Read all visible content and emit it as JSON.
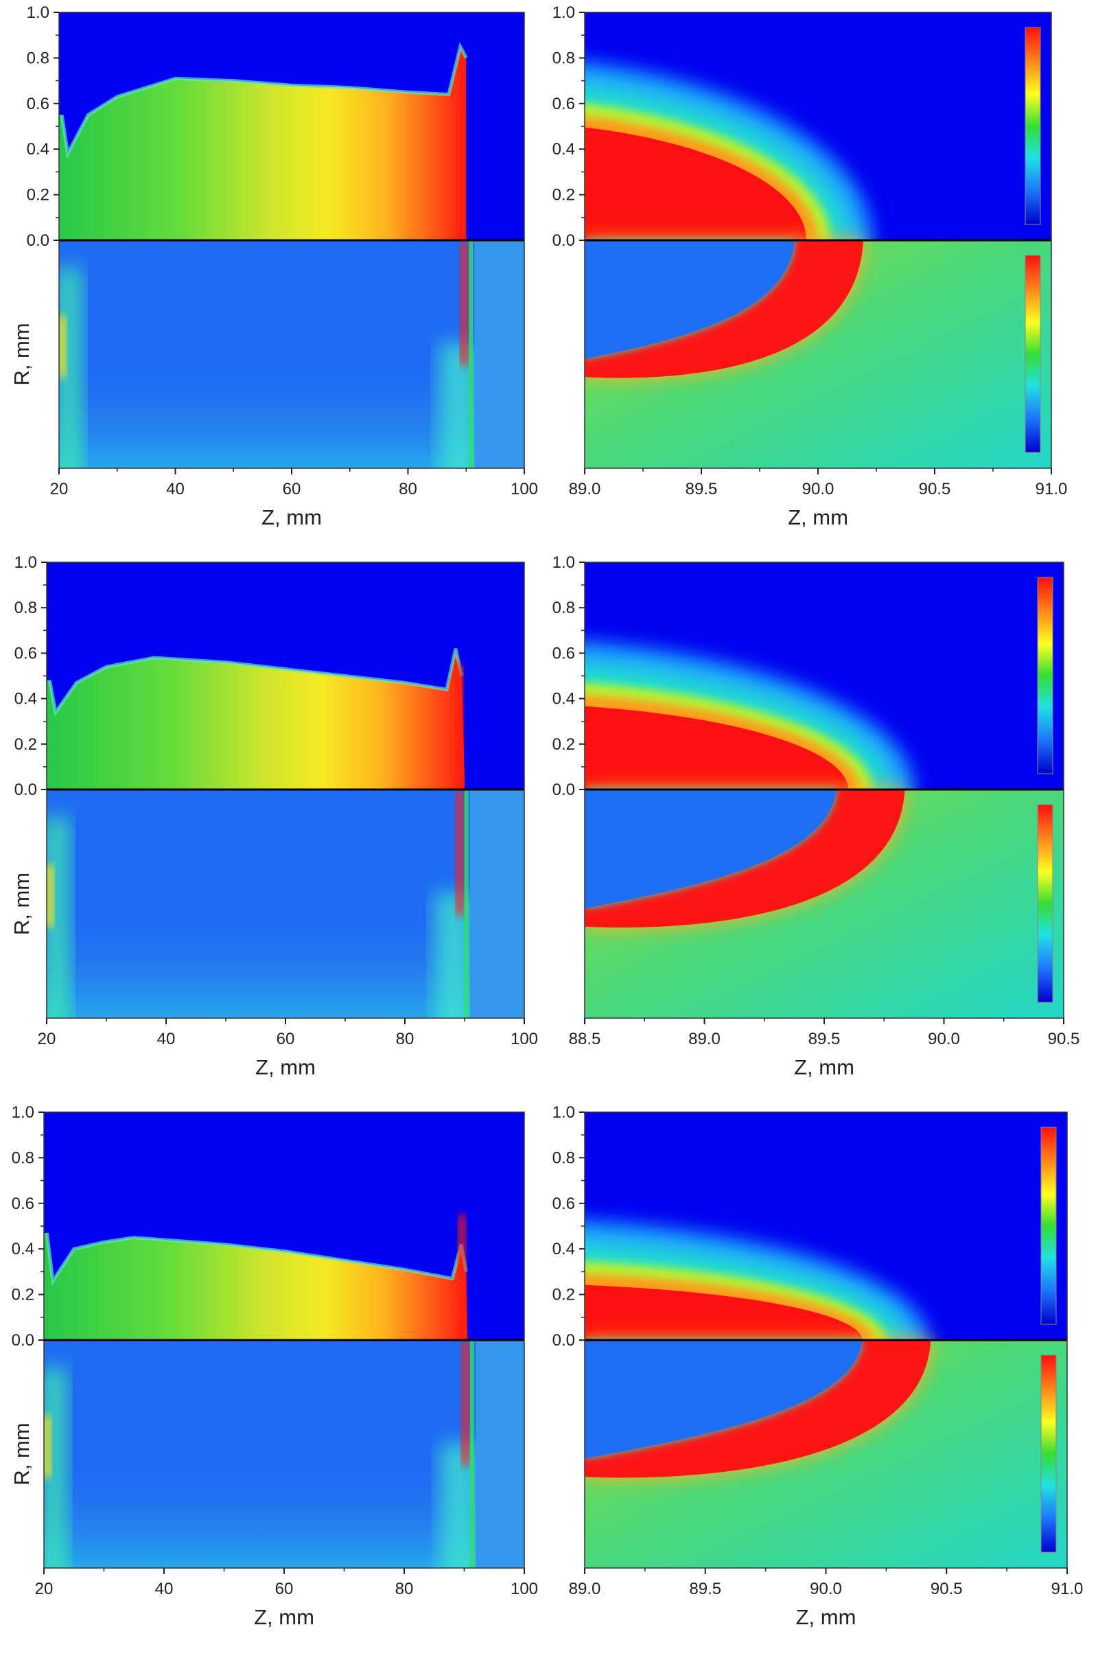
{
  "chart_data": [
    {
      "type": "heatmap",
      "panel": "row-1-left",
      "x_ticks": [
        "20",
        "40",
        "60",
        "80",
        "100"
      ],
      "y_ticks": [
        "0.0",
        "0.2",
        "0.4",
        "0.6",
        "0.8",
        "1.0"
      ],
      "xlabel": "Z, mm",
      "ylabel": "R, mm",
      "xlim": [
        20,
        100
      ],
      "ylim_top": [
        0,
        1
      ],
      "colorbar": false,
      "upper_field": {
        "boundary_z": 90,
        "hot_near_z": 89,
        "contour_r": [
          [
            20.5,
            0.55
          ],
          [
            21.5,
            0.38
          ],
          [
            25,
            0.55
          ],
          [
            30,
            0.63
          ],
          [
            40,
            0.71
          ],
          [
            50,
            0.7
          ],
          [
            60,
            0.68
          ],
          [
            70,
            0.67
          ],
          [
            80,
            0.65
          ],
          [
            87,
            0.64
          ],
          [
            89,
            0.85
          ],
          [
            90,
            0.8
          ]
        ]
      },
      "lower_field": {
        "front_z": 90
      }
    },
    {
      "type": "heatmap",
      "panel": "row-1-right",
      "x_ticks": [
        "89.0",
        "89.5",
        "90.0",
        "90.5",
        "91.0"
      ],
      "y_ticks": [
        "0.0",
        "0.2",
        "0.4",
        "0.6",
        "0.8",
        "1.0"
      ],
      "xlabel": "Z, mm",
      "xlim": [
        89.0,
        91.0
      ],
      "ylim_top": [
        0,
        1
      ],
      "colorbar": true,
      "upper_field": {
        "core_radius": 0.52,
        "tip_z": 89.95
      },
      "lower_field": {
        "front_tip_z": 89.9
      }
    },
    {
      "type": "heatmap",
      "panel": "row-2-left",
      "x_ticks": [
        "20",
        "40",
        "60",
        "80",
        "100"
      ],
      "y_ticks": [
        "0.0",
        "0.2",
        "0.4",
        "0.6",
        "0.8",
        "1.0"
      ],
      "xlabel": "Z, mm",
      "ylabel": "R, mm",
      "xlim": [
        20,
        100
      ],
      "ylim_top": [
        0,
        1
      ],
      "colorbar": false,
      "upper_field": {
        "boundary_z": 90,
        "hot_near_z": 89,
        "contour_r": [
          [
            20.5,
            0.48
          ],
          [
            21.5,
            0.34
          ],
          [
            25,
            0.47
          ],
          [
            30,
            0.54
          ],
          [
            38,
            0.58
          ],
          [
            50,
            0.56
          ],
          [
            60,
            0.53
          ],
          [
            70,
            0.5
          ],
          [
            80,
            0.47
          ],
          [
            87,
            0.44
          ],
          [
            88.5,
            0.62
          ],
          [
            89.5,
            0.5
          ]
        ]
      },
      "lower_field": {
        "front_z": 89.5
      }
    },
    {
      "type": "heatmap",
      "panel": "row-2-right",
      "x_ticks": [
        "88.5",
        "89.0",
        "89.5",
        "90.0",
        "90.5"
      ],
      "y_ticks": [
        "0.0",
        "0.2",
        "0.4",
        "0.6",
        "0.8",
        "1.0"
      ],
      "xlabel": "Z, mm",
      "xlim": [
        88.5,
        90.5
      ],
      "ylim_top": [
        0,
        1
      ],
      "colorbar": true,
      "upper_field": {
        "core_radius": 0.38,
        "tip_z": 89.6
      },
      "lower_field": {
        "front_tip_z": 89.55
      }
    },
    {
      "type": "heatmap",
      "panel": "row-3-left",
      "x_ticks": [
        "20",
        "40",
        "60",
        "80",
        "100"
      ],
      "y_ticks": [
        "0.0",
        "0.2",
        "0.4",
        "0.6",
        "0.8",
        "1.0"
      ],
      "xlabel": "Z, mm",
      "ylabel": "R, mm",
      "xlim": [
        20,
        100
      ],
      "ylim_top": [
        0,
        1
      ],
      "colorbar": false,
      "upper_field": {
        "boundary_z": 90.5,
        "hot_near_z": 89.5,
        "contour_r": [
          [
            20.5,
            0.47
          ],
          [
            21.5,
            0.26
          ],
          [
            25,
            0.4
          ],
          [
            30,
            0.43
          ],
          [
            35,
            0.45
          ],
          [
            50,
            0.42
          ],
          [
            60,
            0.39
          ],
          [
            70,
            0.35
          ],
          [
            80,
            0.31
          ],
          [
            88,
            0.27
          ],
          [
            89.5,
            0.42
          ],
          [
            90.3,
            0.3
          ]
        ]
      },
      "lower_field": {
        "front_z": 90.5
      }
    },
    {
      "type": "heatmap",
      "panel": "row-3-right",
      "x_ticks": [
        "89.0",
        "89.5",
        "90.0",
        "90.5",
        "91.0"
      ],
      "y_ticks": [
        "0.0",
        "0.2",
        "0.4",
        "0.6",
        "0.8",
        "1.0"
      ],
      "xlabel": "Z, mm",
      "xlim": [
        89.0,
        91.0
      ],
      "ylim_top": [
        0,
        1
      ],
      "colorbar": true,
      "upper_field": {
        "core_radius": 0.25,
        "tip_z": 90.15
      },
      "lower_field": {
        "front_tip_z": 90.15
      }
    }
  ]
}
